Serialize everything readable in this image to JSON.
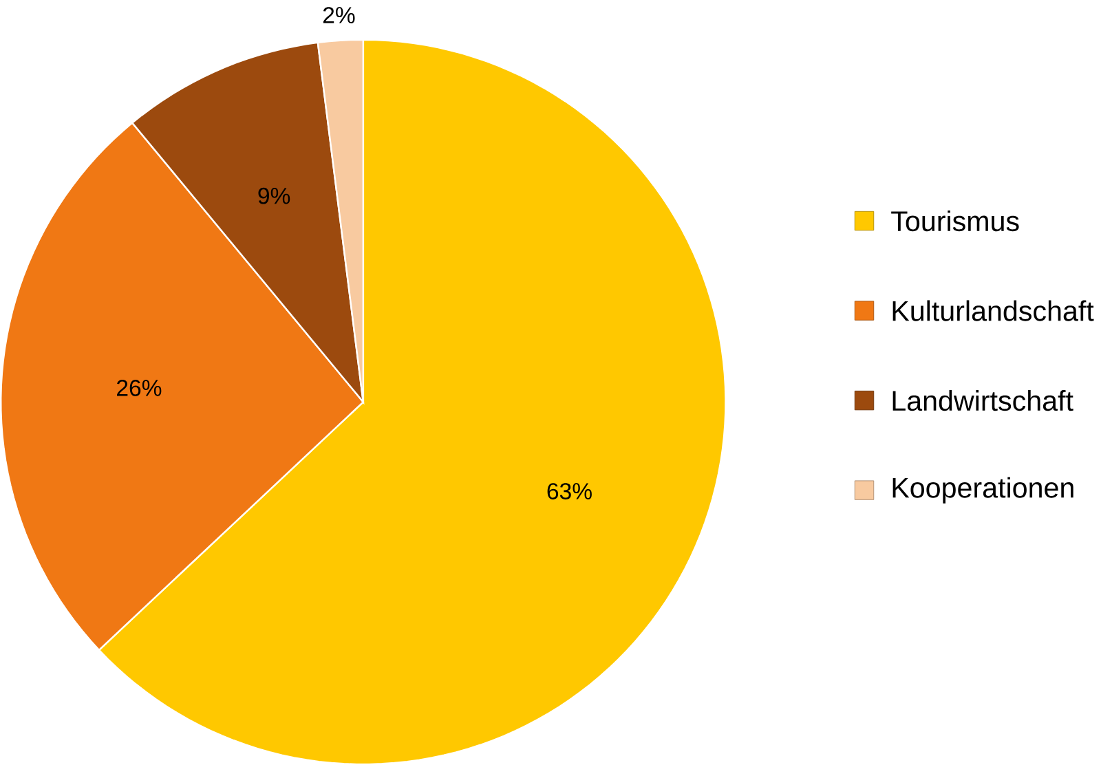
{
  "chart_data": {
    "type": "pie",
    "categories": [
      "Tourismus",
      "Kulturlandschaft",
      "Landwirtschaft",
      "Kooperationen"
    ],
    "values": [
      63,
      26,
      9,
      2
    ],
    "colors": [
      "#ffc800",
      "#f07814",
      "#9c4a0e",
      "#f8caa0"
    ],
    "value_labels": [
      "63%",
      "26%",
      "9%",
      "2%"
    ],
    "legend": "right"
  }
}
